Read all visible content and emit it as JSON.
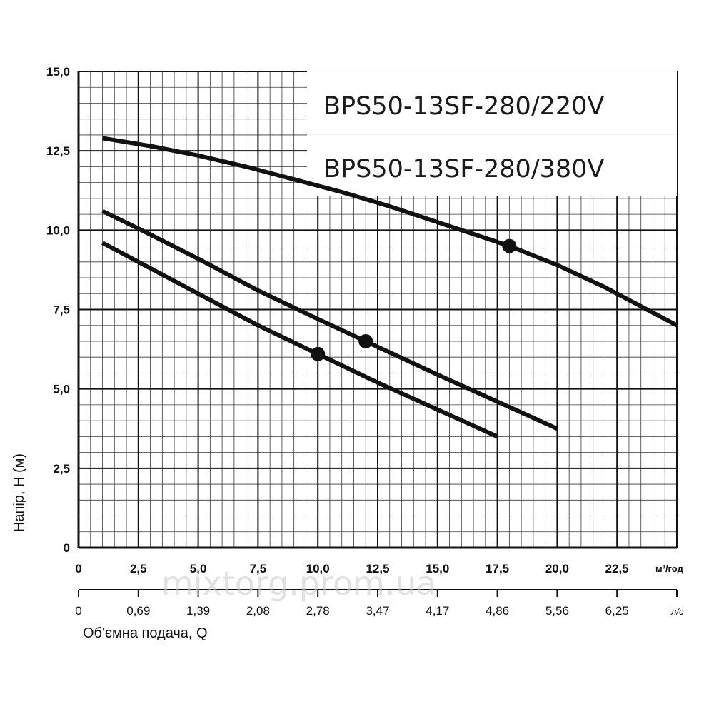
{
  "chart_data": {
    "type": "line",
    "legend": {
      "entries": [
        "BPS50-13SF-280/220V",
        "BPS50-13SF-280/380V"
      ],
      "placement": "top-right"
    },
    "xlabel": "Об'ємна  подача, Q",
    "ylabel": "Напір, Н (м)",
    "x_unit": "м³/год",
    "x2_unit": "л/с",
    "xlim": [
      0,
      25
    ],
    "ylim": [
      0,
      15
    ],
    "grid": true,
    "x_ticks": [
      "0",
      "2,5",
      "5,0",
      "7,5",
      "10,0",
      "12,5",
      "15,0",
      "17,5",
      "20,0",
      "22,5"
    ],
    "x2_ticks": [
      "0",
      "0,69",
      "1,39",
      "2,08",
      "2,78",
      "3,47",
      "4,17",
      "4,86",
      "5,56",
      "6,25"
    ],
    "y_ticks": [
      "0",
      "2,5",
      "5,0",
      "7,5",
      "10,0",
      "12,5",
      "15,0"
    ],
    "series": [
      {
        "x": [
          1,
          3,
          5,
          7,
          9,
          11,
          13,
          15,
          17,
          18,
          20,
          22,
          25
        ],
        "y": [
          12.9,
          12.65,
          12.35,
          12.0,
          11.6,
          11.2,
          10.75,
          10.25,
          9.75,
          9.5,
          8.9,
          8.2,
          7.0
        ],
        "marker": {
          "x": 18,
          "y": 9.5
        }
      },
      {
        "x": [
          1,
          2.5,
          5,
          7.5,
          10,
          12,
          15,
          17.5,
          20
        ],
        "y": [
          10.6,
          10.05,
          9.1,
          8.1,
          7.2,
          6.5,
          5.45,
          4.6,
          3.75
        ],
        "marker": {
          "x": 12,
          "y": 6.5
        }
      },
      {
        "x": [
          1,
          2.5,
          5,
          7.5,
          10,
          12.5,
          15,
          17.5
        ],
        "y": [
          9.6,
          9.0,
          8.0,
          7.0,
          6.1,
          5.2,
          4.35,
          3.5
        ],
        "marker": {
          "x": 10,
          "y": 6.1
        }
      }
    ]
  },
  "watermark": "mixtorg.prom.ua"
}
